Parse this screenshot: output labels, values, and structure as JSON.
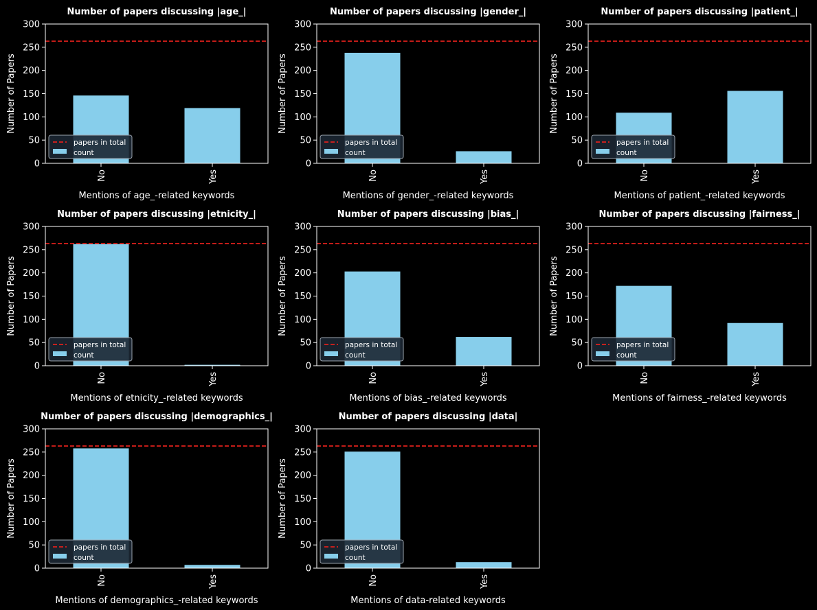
{
  "chart_data": [
    {
      "type": "bar",
      "title": "Number of papers discussing |age_|",
      "xlabel": "Mentions of age_-related keywords",
      "ylabel": "Number of Papers",
      "categories": [
        "No",
        "Yes"
      ],
      "values": [
        146,
        119
      ],
      "ylim": [
        0,
        300
      ],
      "yticks": [
        "0",
        "50",
        "100",
        "150",
        "200",
        "250",
        "300"
      ],
      "reference_line": 263,
      "legend": [
        "papers in total",
        "count"
      ]
    },
    {
      "type": "bar",
      "title": "Number of papers discussing |gender_|",
      "xlabel": "Mentions of gender_-related keywords",
      "ylabel": "Number of Papers",
      "categories": [
        "No",
        "Yes"
      ],
      "values": [
        238,
        26
      ],
      "ylim": [
        0,
        300
      ],
      "yticks": [
        "0",
        "50",
        "100",
        "150",
        "200",
        "250",
        "300"
      ],
      "reference_line": 263,
      "legend": [
        "papers in total",
        "count"
      ]
    },
    {
      "type": "bar",
      "title": "Number of papers discussing |patient_|",
      "xlabel": "Mentions of patient_-related keywords",
      "ylabel": "Number of Papers",
      "categories": [
        "No",
        "Yes"
      ],
      "values": [
        109,
        156
      ],
      "ylim": [
        0,
        300
      ],
      "yticks": [
        "0",
        "50",
        "100",
        "150",
        "200",
        "250",
        "300"
      ],
      "reference_line": 263,
      "legend": [
        "papers in total",
        "count"
      ]
    },
    {
      "type": "bar",
      "title": "Number of papers discussing |etnicity_|",
      "xlabel": "Mentions of etnicity_-related keywords",
      "ylabel": "Number of Papers",
      "categories": [
        "No",
        "Yes"
      ],
      "values": [
        262,
        2
      ],
      "ylim": [
        0,
        300
      ],
      "yticks": [
        "0",
        "50",
        "100",
        "150",
        "200",
        "250",
        "300"
      ],
      "reference_line": 263,
      "legend": [
        "papers in total",
        "count"
      ]
    },
    {
      "type": "bar",
      "title": "Number of papers discussing |bias_|",
      "xlabel": "Mentions of bias_-related keywords",
      "ylabel": "Number of Papers",
      "categories": [
        "No",
        "Yes"
      ],
      "values": [
        203,
        62
      ],
      "ylim": [
        0,
        300
      ],
      "yticks": [
        "0",
        "50",
        "100",
        "150",
        "200",
        "250",
        "300"
      ],
      "reference_line": 263,
      "legend": [
        "papers in total",
        "count"
      ]
    },
    {
      "type": "bar",
      "title": "Number of papers discussing |fairness_|",
      "xlabel": "Mentions of fairness_-related keywords",
      "ylabel": "Number of Papers",
      "categories": [
        "No",
        "Yes"
      ],
      "values": [
        172,
        92
      ],
      "ylim": [
        0,
        300
      ],
      "yticks": [
        "0",
        "50",
        "100",
        "150",
        "200",
        "250",
        "300"
      ],
      "reference_line": 263,
      "legend": [
        "papers in total",
        "count"
      ]
    },
    {
      "type": "bar",
      "title": "Number of papers discussing |demographics_|",
      "xlabel": "Mentions of demographics_-related keywords",
      "ylabel": "Number of Papers",
      "categories": [
        "No",
        "Yes"
      ],
      "values": [
        258,
        7
      ],
      "ylim": [
        0,
        300
      ],
      "yticks": [
        "0",
        "50",
        "100",
        "150",
        "200",
        "250",
        "300"
      ],
      "reference_line": 263,
      "legend": [
        "papers in total",
        "count"
      ]
    },
    {
      "type": "bar",
      "title": "Number of papers discussing |data|",
      "xlabel": "Mentions of data-related keywords",
      "ylabel": "Number of Papers",
      "categories": [
        "No",
        "Yes"
      ],
      "values": [
        251,
        13
      ],
      "ylim": [
        0,
        300
      ],
      "yticks": [
        "0",
        "50",
        "100",
        "150",
        "200",
        "250",
        "300"
      ],
      "reference_line": 263,
      "legend": [
        "papers in total",
        "count"
      ]
    }
  ],
  "colors": {
    "background": "#000000",
    "bar": "#87ceeb",
    "reference_line": "#e0201c",
    "axes": "#ffffff",
    "legend_bg": "#1c2733",
    "legend_border": "#9aa3ad"
  }
}
